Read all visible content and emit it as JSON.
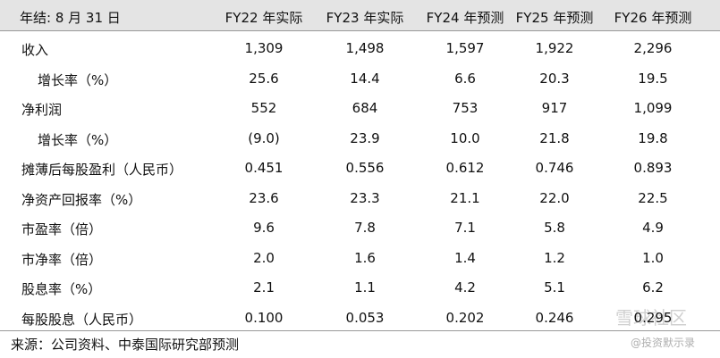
{
  "table": {
    "corner": "年结: 8 月 31 日",
    "columns": [
      "FY22 年实际",
      "FY23 年实际",
      "FY24 年预测",
      "FY25 年预测",
      "FY26 年预测"
    ],
    "rows": [
      {
        "label": "收入",
        "indent": false,
        "cells": [
          "1,309",
          "1,498",
          "1,597",
          "1,922",
          "2,296"
        ]
      },
      {
        "label": "增长率（%）",
        "indent": true,
        "cells": [
          "25.6",
          "14.4",
          "6.6",
          "20.3",
          "19.5"
        ]
      },
      {
        "label": "净利润",
        "indent": false,
        "cells": [
          "552",
          "684",
          "753",
          "917",
          "1,099"
        ]
      },
      {
        "label": "增长率（%）",
        "indent": true,
        "cells": [
          "(9.0)",
          "23.9",
          "10.0",
          "21.8",
          "19.8"
        ]
      },
      {
        "label": "摊薄后每股盈利（人民币）",
        "indent": false,
        "cells": [
          "0.451",
          "0.556",
          "0.612",
          "0.746",
          "0.893"
        ]
      },
      {
        "label": "净资产回报率（%）",
        "indent": false,
        "cells": [
          "23.6",
          "23.3",
          "21.1",
          "22.0",
          "22.5"
        ]
      },
      {
        "label": "市盈率（倍）",
        "indent": false,
        "cells": [
          "9.6",
          "7.8",
          "7.1",
          "5.8",
          "4.9"
        ]
      },
      {
        "label": "市净率（倍）",
        "indent": false,
        "cells": [
          "2.0",
          "1.6",
          "1.4",
          "1.2",
          "1.0"
        ]
      },
      {
        "label": "股息率（%）",
        "indent": false,
        "cells": [
          "2.1",
          "1.1",
          "4.2",
          "5.1",
          "6.2"
        ]
      },
      {
        "label": "每股股息（人民币）",
        "indent": false,
        "cells": [
          "0.100",
          "0.053",
          "0.202",
          "0.246",
          "0.295"
        ]
      }
    ]
  },
  "source": "来源：公司资料、中泰国际研究部预测",
  "watermark": {
    "brand": "雪球社区",
    "handle": "@投资默示录"
  }
}
